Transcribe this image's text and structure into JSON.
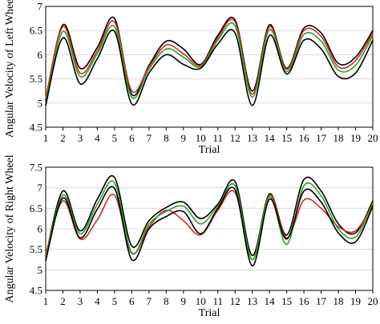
{
  "chart_data": [
    {
      "type": "line",
      "xlabel": "Trial",
      "ylabel": "Angular Velocity of Left Wheel",
      "x": [
        1,
        2,
        3,
        4,
        5,
        6,
        7,
        8,
        9,
        10,
        11,
        12,
        13,
        14,
        15,
        16,
        17,
        18,
        19,
        20
      ],
      "x_tick_labels": [
        "1",
        "2",
        "3",
        "4",
        "5",
        "6",
        "7",
        "8",
        "9",
        "10",
        "11",
        "12",
        "13",
        "14",
        "15",
        "16",
        "17",
        "18",
        "19",
        "20"
      ],
      "ylim": [
        4.5,
        7
      ],
      "y_ticks": [
        4.5,
        5,
        5.5,
        6,
        6.5,
        7
      ],
      "y_tick_labels": [
        "4.5",
        "5",
        "5.5",
        "6",
        "6.5",
        "7"
      ],
      "grid": "horizontal",
      "series": [
        {
          "color": "#000000",
          "values": [
            5.05,
            6.62,
            5.72,
            6.15,
            6.75,
            5.18,
            5.78,
            6.28,
            6.12,
            5.8,
            6.4,
            6.72,
            5.25,
            6.62,
            5.72,
            6.55,
            6.45,
            5.82,
            5.95,
            6.5
          ]
        },
        {
          "color": "#d62728",
          "values": [
            5.1,
            6.58,
            5.62,
            6.08,
            6.68,
            5.25,
            5.75,
            6.2,
            6.02,
            5.78,
            6.35,
            6.68,
            5.18,
            6.58,
            5.7,
            6.5,
            6.38,
            5.75,
            5.88,
            6.45
          ]
        },
        {
          "color": "#2ca02c",
          "values": [
            5.0,
            6.48,
            5.55,
            6.02,
            6.58,
            5.12,
            5.7,
            6.12,
            5.95,
            5.75,
            6.3,
            6.6,
            5.12,
            6.52,
            5.65,
            6.42,
            6.28,
            5.68,
            5.78,
            6.4
          ]
        },
        {
          "color": "#000000",
          "values": [
            4.95,
            6.35,
            5.4,
            5.92,
            6.48,
            4.98,
            5.62,
            6.0,
            5.8,
            5.72,
            6.22,
            6.45,
            4.95,
            6.4,
            5.6,
            6.3,
            6.12,
            5.55,
            5.62,
            6.3
          ]
        }
      ]
    },
    {
      "type": "line",
      "xlabel": "Trial",
      "ylabel": "Angular Velocity of Right Wheel",
      "x": [
        1,
        2,
        3,
        4,
        5,
        6,
        7,
        8,
        9,
        10,
        11,
        12,
        13,
        14,
        15,
        16,
        17,
        18,
        19,
        20
      ],
      "x_tick_labels": [
        "1",
        "2",
        "3",
        "4",
        "5",
        "6",
        "7",
        "8",
        "9",
        "10",
        "11",
        "12",
        "13",
        "14",
        "15",
        "16",
        "17",
        "18",
        "19",
        "20"
      ],
      "ylim": [
        4.5,
        7.5
      ],
      "y_ticks": [
        4.5,
        5,
        5.5,
        6,
        6.5,
        7,
        7.5
      ],
      "y_tick_labels": [
        "4.5",
        "5",
        "5.5",
        "6",
        "6.5",
        "7",
        "7.5"
      ],
      "grid": "horizontal",
      "series": [
        {
          "color": "#000000",
          "values": [
            5.32,
            6.92,
            5.95,
            6.72,
            7.25,
            5.58,
            6.2,
            6.52,
            6.65,
            6.25,
            6.6,
            7.15,
            5.35,
            6.85,
            5.85,
            7.2,
            6.92,
            6.12,
            5.9,
            6.68
          ]
        },
        {
          "color": "#d62728",
          "values": [
            5.38,
            6.68,
            5.75,
            6.22,
            6.82,
            5.4,
            6.05,
            6.45,
            6.2,
            5.85,
            6.45,
            6.88,
            5.25,
            6.82,
            5.78,
            6.7,
            6.5,
            6.05,
            5.95,
            6.6
          ]
        },
        {
          "color": "#2ca02c",
          "values": [
            5.28,
            6.82,
            5.88,
            6.6,
            7.12,
            5.42,
            6.12,
            6.42,
            6.55,
            6.12,
            6.55,
            7.05,
            5.25,
            6.78,
            5.62,
            7.05,
            6.8,
            6.0,
            5.8,
            6.62
          ]
        },
        {
          "color": "#000000",
          "values": [
            5.22,
            6.75,
            5.78,
            6.48,
            6.98,
            5.25,
            6.0,
            6.3,
            6.42,
            5.88,
            6.5,
            6.95,
            5.1,
            6.72,
            5.75,
            6.92,
            6.65,
            5.9,
            5.68,
            6.55
          ]
        }
      ]
    }
  ]
}
